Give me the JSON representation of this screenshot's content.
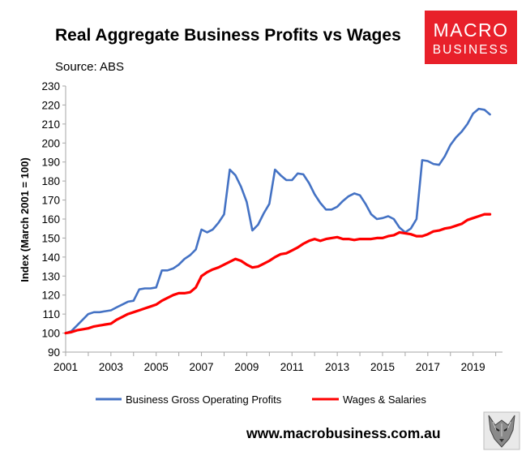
{
  "chart_data": {
    "type": "line",
    "title": "Real Aggregate Business Profits vs Wages",
    "subtitle": "Source: ABS",
    "xlabel": "",
    "ylabel": "Index (March 2001 = 100)",
    "xlim": [
      2001,
      2020.3
    ],
    "ylim": [
      90,
      230
    ],
    "yticks": [
      90,
      100,
      110,
      120,
      130,
      140,
      150,
      160,
      170,
      180,
      190,
      200,
      210,
      220,
      230
    ],
    "xticks": [
      2001,
      2003,
      2005,
      2007,
      2009,
      2011,
      2013,
      2015,
      2017,
      2019
    ],
    "grid": false,
    "legend_position": "bottom",
    "series": [
      {
        "name": "Business Gross Operating Profits",
        "color": "#4472C4",
        "x": [
          2001.0,
          2001.25,
          2001.5,
          2001.75,
          2002.0,
          2002.25,
          2002.5,
          2002.75,
          2003.0,
          2003.25,
          2003.5,
          2003.75,
          2004.0,
          2004.25,
          2004.5,
          2004.75,
          2005.0,
          2005.25,
          2005.5,
          2005.75,
          2006.0,
          2006.25,
          2006.5,
          2006.75,
          2007.0,
          2007.25,
          2007.5,
          2007.75,
          2008.0,
          2008.25,
          2008.5,
          2008.75,
          2009.0,
          2009.25,
          2009.5,
          2009.75,
          2010.0,
          2010.25,
          2010.5,
          2010.75,
          2011.0,
          2011.25,
          2011.5,
          2011.75,
          2012.0,
          2012.25,
          2012.5,
          2012.75,
          2013.0,
          2013.25,
          2013.5,
          2013.75,
          2014.0,
          2014.25,
          2014.5,
          2014.75,
          2015.0,
          2015.25,
          2015.5,
          2015.75,
          2016.0,
          2016.25,
          2016.5,
          2016.75,
          2017.0,
          2017.25,
          2017.5,
          2017.75,
          2018.0,
          2018.25,
          2018.5,
          2018.75,
          2019.0,
          2019.25,
          2019.5,
          2019.75
        ],
        "values": [
          100,
          101,
          104,
          107,
          110,
          111,
          111,
          111.5,
          112,
          113.5,
          115,
          116.5,
          117,
          123,
          123.5,
          123.5,
          124,
          133,
          133,
          134,
          136,
          139,
          141,
          144,
          154.5,
          153,
          154.5,
          158,
          162.5,
          186,
          183,
          177,
          169,
          154,
          157,
          163,
          168,
          186,
          183,
          180.5,
          180.5,
          184,
          183.5,
          179,
          173,
          168.5,
          165,
          165,
          166.5,
          169.5,
          172,
          173.5,
          172.5,
          168,
          162.5,
          160,
          160.5,
          161.5,
          160,
          155.5,
          153,
          155,
          160,
          191,
          190.5,
          189,
          188.5,
          193,
          199,
          203,
          206,
          210,
          215.5,
          218,
          217.5,
          215
        ]
      },
      {
        "name": "Wages & Salaries",
        "color": "#FF0000",
        "x": [
          2001.0,
          2001.25,
          2001.5,
          2001.75,
          2002.0,
          2002.25,
          2002.5,
          2002.75,
          2003.0,
          2003.25,
          2003.5,
          2003.75,
          2004.0,
          2004.25,
          2004.5,
          2004.75,
          2005.0,
          2005.25,
          2005.5,
          2005.75,
          2006.0,
          2006.25,
          2006.5,
          2006.75,
          2007.0,
          2007.25,
          2007.5,
          2007.75,
          2008.0,
          2008.25,
          2008.5,
          2008.75,
          2009.0,
          2009.25,
          2009.5,
          2009.75,
          2010.0,
          2010.25,
          2010.5,
          2010.75,
          2011.0,
          2011.25,
          2011.5,
          2011.75,
          2012.0,
          2012.25,
          2012.5,
          2012.75,
          2013.0,
          2013.25,
          2013.5,
          2013.75,
          2014.0,
          2014.25,
          2014.5,
          2014.75,
          2015.0,
          2015.25,
          2015.5,
          2015.75,
          2016.0,
          2016.25,
          2016.5,
          2016.75,
          2017.0,
          2017.25,
          2017.5,
          2017.75,
          2018.0,
          2018.25,
          2018.5,
          2018.75,
          2019.0,
          2019.25,
          2019.5,
          2019.75
        ],
        "values": [
          100,
          100.5,
          101.5,
          102,
          102.5,
          103.5,
          104,
          104.5,
          105,
          107,
          108.5,
          110,
          111,
          112,
          113,
          114,
          115,
          117,
          118.5,
          120,
          121,
          121,
          121.5,
          124,
          130,
          132,
          133.5,
          134.5,
          136,
          137.5,
          139,
          138,
          136,
          134.5,
          135,
          136.5,
          138,
          140,
          141.5,
          142,
          143.5,
          145,
          147,
          148.5,
          149.5,
          148.5,
          149.5,
          150,
          150.5,
          149.5,
          149.5,
          149,
          149.5,
          149.5,
          149.5,
          150,
          150,
          151,
          151.5,
          153,
          152.5,
          152,
          151,
          151,
          152,
          153.5,
          154,
          155,
          155.5,
          156.5,
          157.5,
          159.5,
          160.5,
          161.5,
          162.5,
          162.5
        ]
      }
    ]
  },
  "logo": {
    "line1": "MACRO",
    "line2": "BUSINESS",
    "bg_color": "#E8202A"
  },
  "footer": {
    "url": "www.macrobusiness.com.au",
    "emblem_icon": "wolf-icon"
  }
}
